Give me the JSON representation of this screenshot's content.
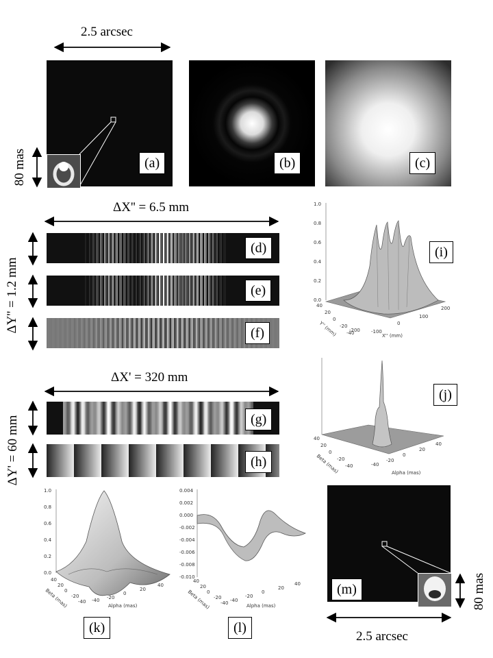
{
  "top": {
    "scale_label": "2.5 arcsec",
    "vertical_label": "80 mas"
  },
  "panels": {
    "a": "(a)",
    "b": "(b)",
    "c": "(c)",
    "d": "(d)",
    "e": "(e)",
    "f": "(f)",
    "g": "(g)",
    "h": "(h)",
    "i": "(i)",
    "j": "(j)",
    "k": "(k)",
    "l": "(l)",
    "m": "(m)"
  },
  "mid": {
    "dx2": "ΔX'' = 6.5 mm",
    "dy2": "ΔY'' = 1.2 mm"
  },
  "lower": {
    "dx1": "ΔX' = 320 mm",
    "dy1": "ΔY' = 60 mm"
  },
  "bottom_right": {
    "vertical_label": "80 mas",
    "scale_label": "2.5 arcsec"
  },
  "plot_i": {
    "z_ticks": [
      "1.0",
      "0.8",
      "0.6",
      "0.4",
      "0.2",
      "0.0"
    ],
    "x_ticks": [
      "-200",
      "-100",
      "0",
      "100",
      "200"
    ],
    "y_ticks": [
      "-40",
      "-20",
      "0",
      "20",
      "40"
    ],
    "x_axis_label": "X'' (mm)",
    "y_axis_label": "Y'' (mm)"
  },
  "plot_j": {
    "x_ticks": [
      "-40",
      "-20",
      "0",
      "20",
      "40"
    ],
    "y_ticks": [
      "-40",
      "-20",
      "0",
      "20",
      "40"
    ],
    "x_axis_label": "Alpha (mas)",
    "y_axis_label": "Beta (mas)"
  },
  "plot_k": {
    "z_ticks": [
      "1.0",
      "0.8",
      "0.6",
      "0.4",
      "0.2",
      "0.0"
    ],
    "x_ticks": [
      "-40",
      "-20",
      "0",
      "20",
      "40"
    ],
    "y_ticks": [
      "-40",
      "-20",
      "0",
      "20",
      "40"
    ],
    "x_axis_label": "Alpha (mas)",
    "y_axis_label": "Beta (mas)"
  },
  "plot_l": {
    "z_ticks": [
      "0.004",
      "0.002",
      "0.000",
      "-0.002",
      "-0.004",
      "-0.006",
      "-0.008",
      "-0.010"
    ],
    "x_ticks": [
      "-40",
      "-20",
      "0",
      "20",
      "40"
    ],
    "y_ticks": [
      "-40",
      "-20",
      "0",
      "20",
      "40"
    ],
    "x_axis_label": "Alpha (mas)",
    "y_axis_label": "Beta (mas)"
  }
}
